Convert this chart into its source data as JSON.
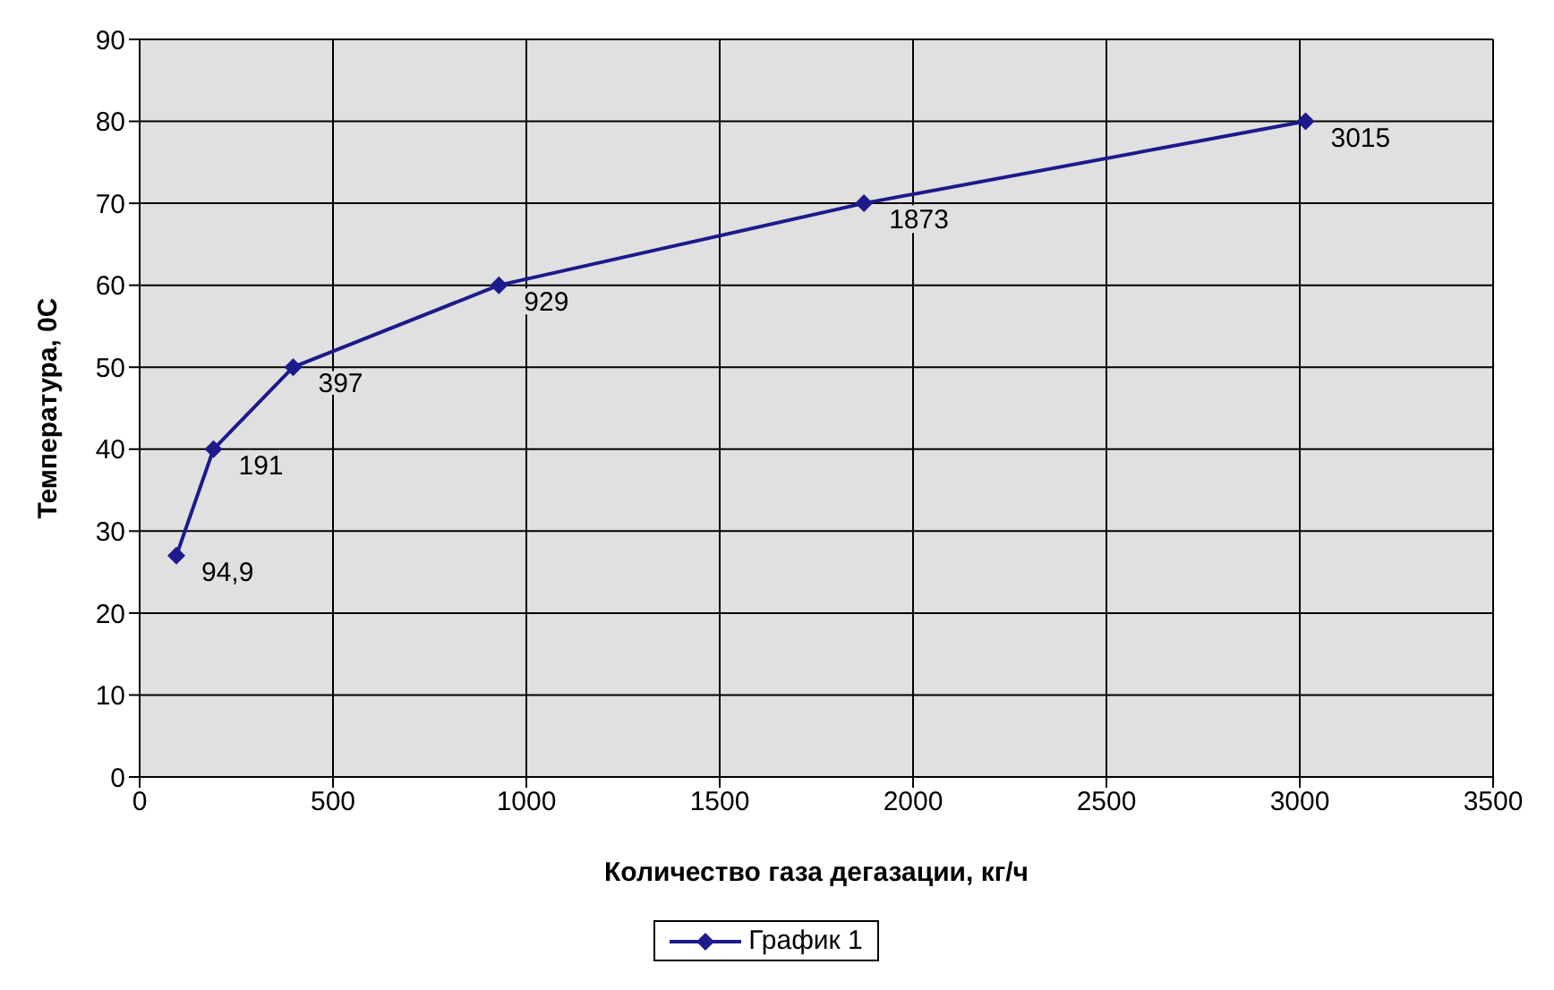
{
  "chart_data": {
    "type": "line",
    "xlabel": "Количество газа дегазации, кг/ч",
    "ylabel": "Температура, 0С",
    "x": [
      94.9,
      191,
      397,
      929,
      1873,
      3015
    ],
    "series": [
      {
        "name": "График 1",
        "color": "#1c1a8c",
        "values": [
          27,
          40,
          50,
          60,
          70,
          80
        ]
      }
    ],
    "annotations": [
      {
        "text": "94,9",
        "x": 94.9,
        "y": 27
      },
      {
        "text": "191",
        "x": 191,
        "y": 40
      },
      {
        "text": "397",
        "x": 397,
        "y": 50
      },
      {
        "text": "929",
        "x": 929,
        "y": 60
      },
      {
        "text": "1873",
        "x": 1873,
        "y": 70
      },
      {
        "text": "3015",
        "x": 3015,
        "y": 80
      }
    ],
    "xlim": [
      0,
      3500
    ],
    "xticks": [
      0,
      500,
      1000,
      1500,
      2000,
      2500,
      3000,
      3500
    ],
    "ylim": [
      0,
      90
    ],
    "yticks": [
      0,
      10,
      20,
      30,
      40,
      50,
      60,
      70,
      80,
      90
    ],
    "grid": true,
    "legend": "bottom",
    "marker": "diamond",
    "line_style": "solid"
  }
}
